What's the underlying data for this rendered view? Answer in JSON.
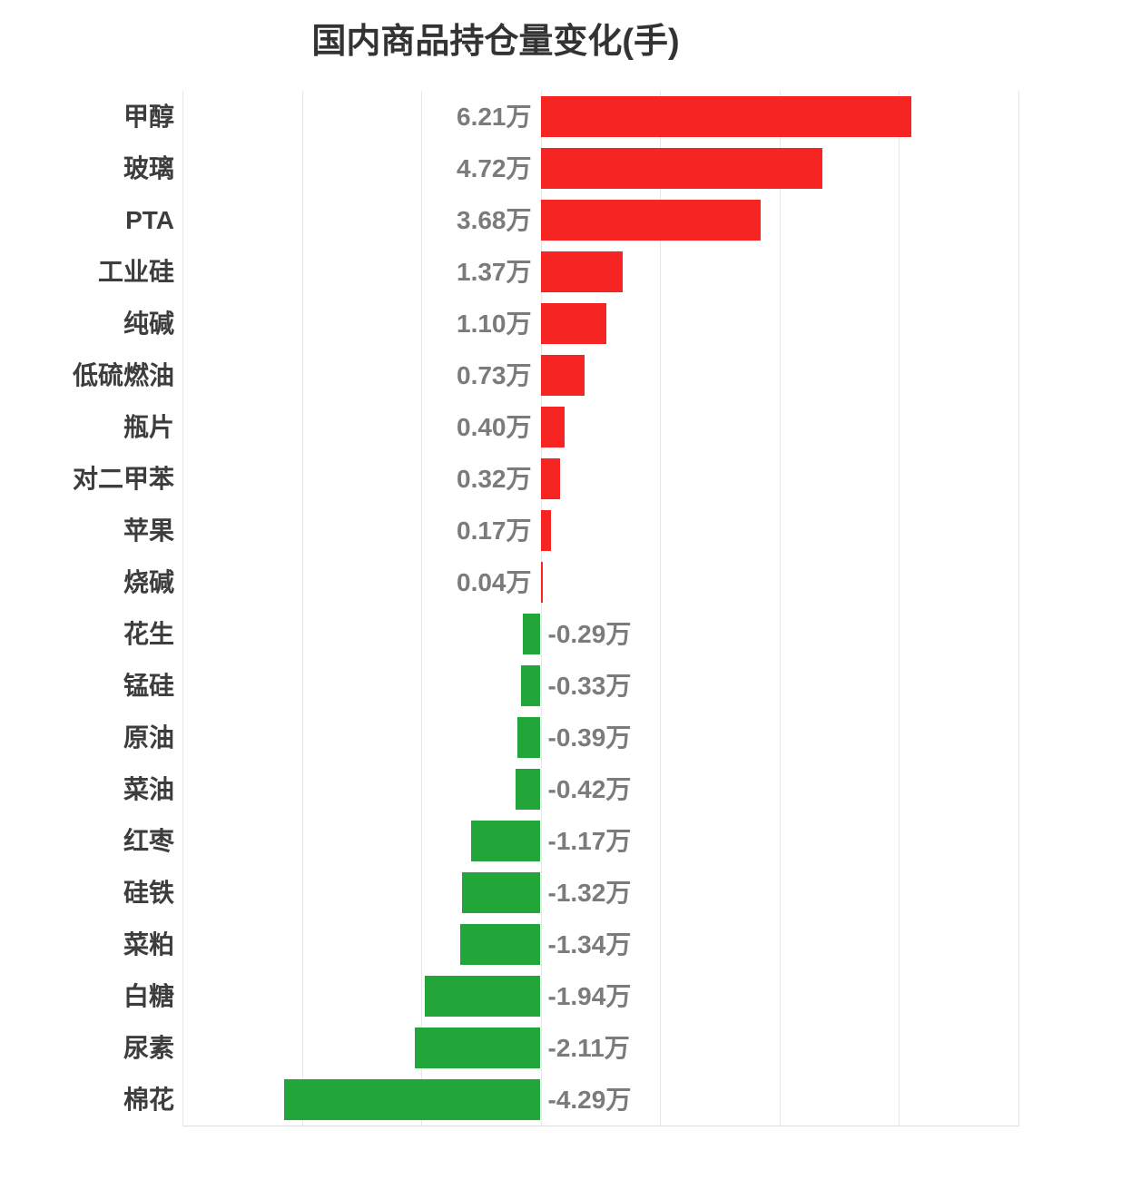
{
  "chart_data": {
    "type": "bar",
    "orientation": "horizontal",
    "title": "国内商品持仓量变化(手)",
    "unit": "万",
    "categories": [
      "甲醇",
      "玻璃",
      "PTA",
      "工业硅",
      "纯碱",
      "低硫燃油",
      "瓶片",
      "对二甲苯",
      "苹果",
      "烧碱",
      "花生",
      "锰硅",
      "原油",
      "菜油",
      "红枣",
      "硅铁",
      "菜粕",
      "白糖",
      "尿素",
      "棉花"
    ],
    "values": [
      6.21,
      4.72,
      3.68,
      1.37,
      1.1,
      0.73,
      0.4,
      0.32,
      0.17,
      0.04,
      -0.29,
      -0.33,
      -0.39,
      -0.42,
      -1.17,
      -1.32,
      -1.34,
      -1.94,
      -2.11,
      -4.29
    ],
    "value_labels": [
      "6.21万",
      "4.72万",
      "3.68万",
      "1.37万",
      "1.10万",
      "0.73万",
      "0.40万",
      "0.32万",
      "0.17万",
      "0.04万",
      "-0.29万",
      "-0.33万",
      "-0.39万",
      "-0.42万",
      "-1.17万",
      "-1.32万",
      "-1.34万",
      "-1.94万",
      "-2.11万",
      "-4.29万"
    ],
    "xlim": [
      -6,
      8
    ],
    "grid_step": 2,
    "grid": true,
    "legend": false,
    "x_tick_labels_visible": false,
    "colors": {
      "positive_bar": "#f62423",
      "negative_bar": "#22a63a",
      "title_text": "#333333",
      "category_label": "#3d3d3d",
      "value_label": "#7b7b7b",
      "gridline": "#e7e7e7",
      "axis_border": "#e0e0e0",
      "background": "#ffffff"
    }
  }
}
